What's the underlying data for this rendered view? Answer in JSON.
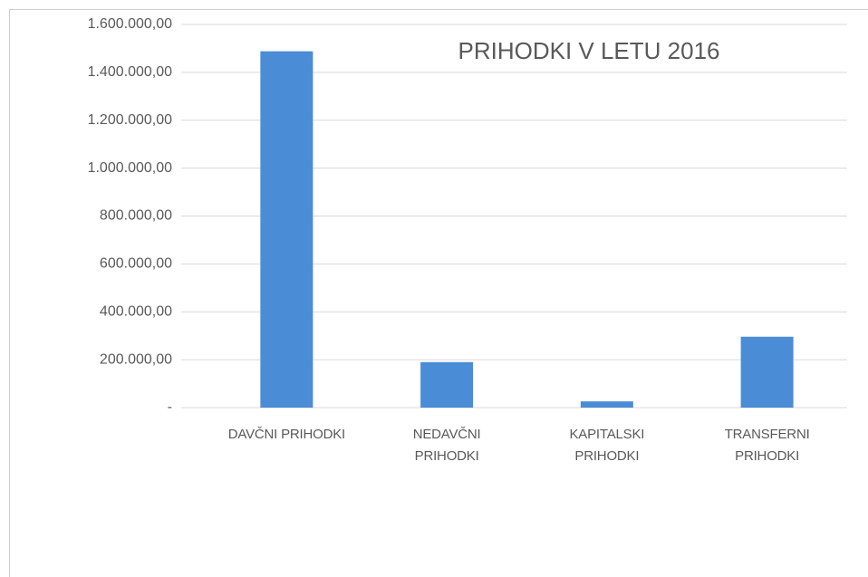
{
  "chart_data": {
    "type": "bar",
    "title": "PRIHODKI V LETU 2016",
    "categories": [
      "DAVČNI PRIHODKI",
      "NEDAVČNI PRIHODKI",
      "KAPITALSKI PRIHODKI",
      "TRANSFERNI PRIHODKI"
    ],
    "values": [
      1488000,
      190000,
      26000,
      296000
    ],
    "color": "#4a8cd6",
    "ylim": [
      0,
      1600000
    ],
    "yticks": [
      {
        "value": 0,
        "label": "-"
      },
      {
        "value": 200000,
        "label": "200.000,00"
      },
      {
        "value": 400000,
        "label": "400.000,00"
      },
      {
        "value": 600000,
        "label": "600.000,00"
      },
      {
        "value": 800000,
        "label": "800.000,00"
      },
      {
        "value": 1000000,
        "label": "1.000.000,00"
      },
      {
        "value": 1200000,
        "label": "1.200.000,00"
      },
      {
        "value": 1400000,
        "label": "1.400.000,00"
      },
      {
        "value": 1600000,
        "label": "1.600.000,00"
      }
    ],
    "grid": true
  }
}
